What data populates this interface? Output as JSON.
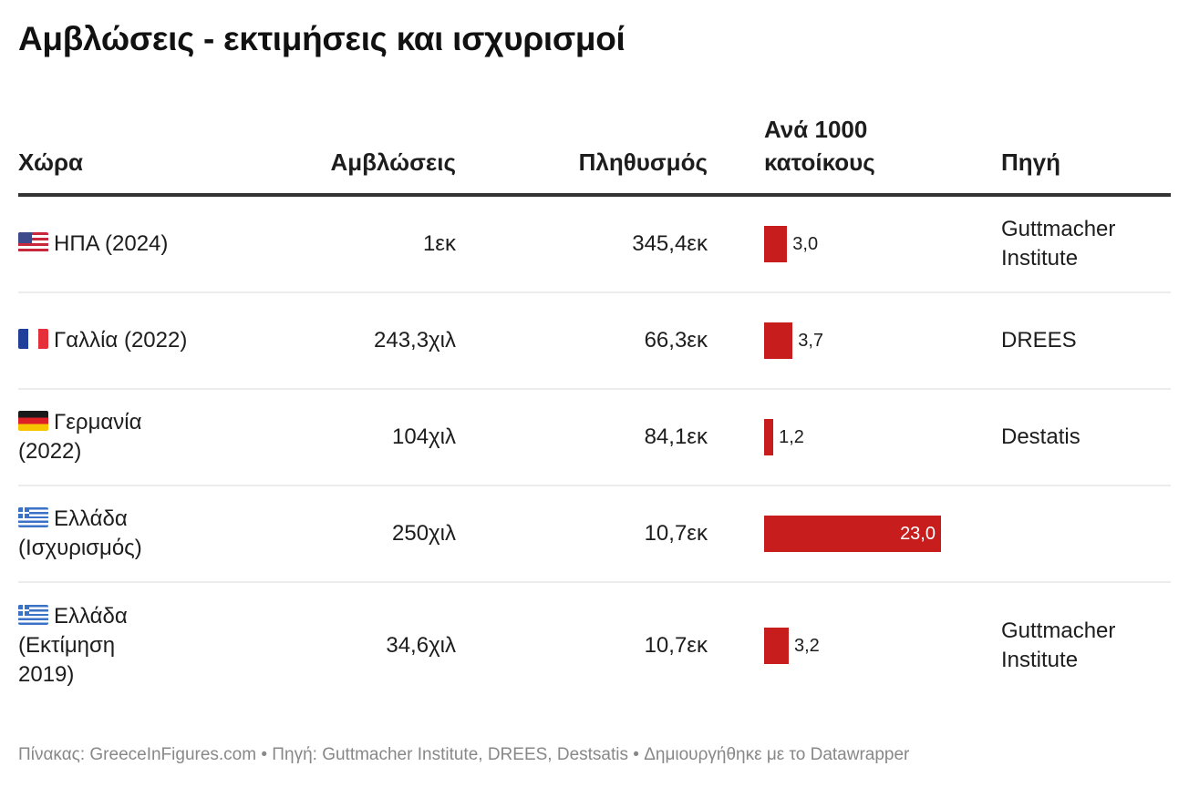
{
  "title": "Αμβλώσεις - εκτιμήσεις και ισχυρισμοί",
  "headers": {
    "country": "Χώρα",
    "abortions": "Αμβλώσεις",
    "population": "Πληθυσμός",
    "rate_line1": "Ανά 1000",
    "rate_line2": "κατοίκους",
    "source": "Πηγή"
  },
  "rows": [
    {
      "flag": "us-flag-icon",
      "country": "ΗΠΑ (2024)",
      "abortions": "1εκ",
      "population": "345,4εκ",
      "rate_label": "3,0",
      "source": "Guttmacher Institute"
    },
    {
      "flag": "fr-flag-icon",
      "country": "Γαλλία (2022)",
      "abortions": "243,3χιλ",
      "population": "66,3εκ",
      "rate_label": "3,7",
      "source": "DREES"
    },
    {
      "flag": "de-flag-icon",
      "country": "Γερμανία (2022)",
      "abortions": "104χιλ",
      "population": "84,1εκ",
      "rate_label": "1,2",
      "source": "Destatis"
    },
    {
      "flag": "gr-flag-icon",
      "country": "Ελλάδα (Ισχυρισμός)",
      "abortions": "250χιλ",
      "population": "10,7εκ",
      "rate_label": "23,0",
      "source": ""
    },
    {
      "flag": "gr-flag-icon",
      "country": "Ελλάδα (Εκτίμηση 2019)",
      "abortions": "34,6χιλ",
      "population": "10,7εκ",
      "rate_label": "3,2",
      "source": "Guttmacher Institute"
    }
  ],
  "footer": "Πίνακας: GreeceInFigures.com • Πηγή: Guttmacher Institute, DREES, Destsatis • Δημιουργήθηκε με το Datawrapper",
  "colors": {
    "bar": "#c71e1d",
    "header_rule": "#333333",
    "row_rule": "#ececec"
  },
  "chart_data": {
    "type": "table",
    "title": "Αμβλώσεις - εκτιμήσεις και ισχυρισμοί",
    "columns": [
      "Χώρα",
      "Αμβλώσεις",
      "Πληθυσμός",
      "Ανά 1000 κατοίκους",
      "Πηγή"
    ],
    "categories": [
      "ΗΠΑ (2024)",
      "Γαλλία (2022)",
      "Γερμανία (2022)",
      "Ελλάδα (Ισχυρισμός)",
      "Ελλάδα (Εκτίμηση 2019)"
    ],
    "series": [
      {
        "name": "Ανά 1000 κατοίκους",
        "type": "bar",
        "values": [
          3.0,
          3.7,
          1.2,
          23.0,
          3.2
        ]
      }
    ],
    "xlim": [
      0,
      23.0
    ]
  }
}
